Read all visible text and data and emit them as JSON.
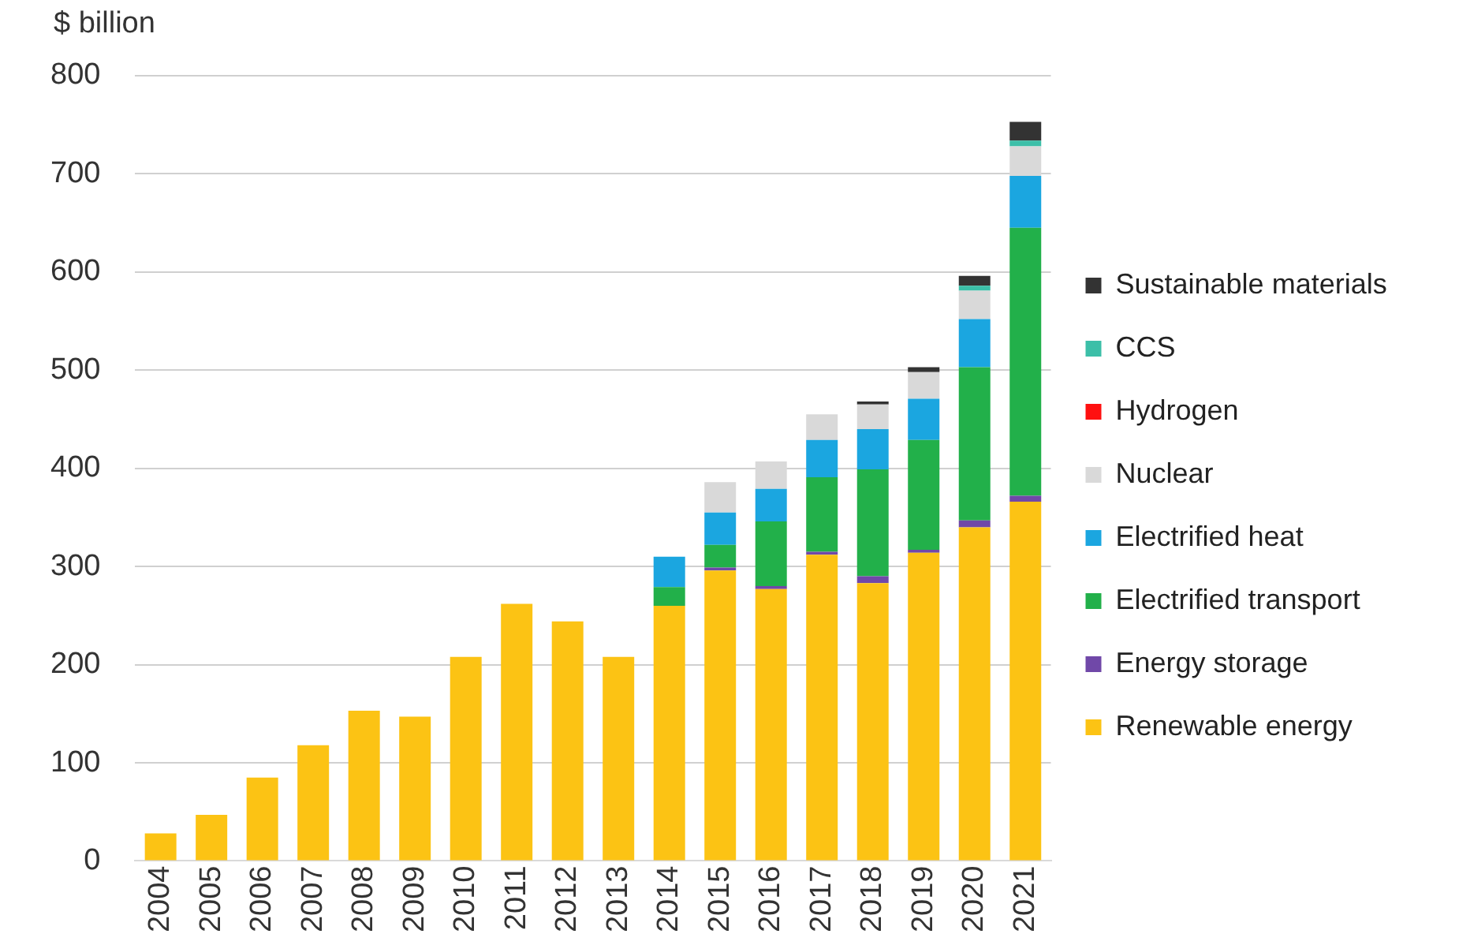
{
  "chart_data": {
    "type": "bar",
    "stacked": true,
    "ylabel": "$ billion",
    "categories": [
      "2004",
      "2005",
      "2006",
      "2007",
      "2008",
      "2009",
      "2010",
      "2011",
      "2012",
      "2013",
      "2014",
      "2015",
      "2016",
      "2017",
      "2018",
      "2019",
      "2020",
      "2021"
    ],
    "series": [
      {
        "name": "Renewable energy",
        "color": "#fcc314",
        "values": [
          28,
          47,
          85,
          118,
          153,
          147,
          208,
          262,
          244,
          208,
          260,
          296,
          277,
          312,
          283,
          314,
          340,
          366
        ]
      },
      {
        "name": "Energy storage",
        "color": "#7048a8",
        "values": [
          0,
          0,
          0,
          0,
          0,
          0,
          0,
          0,
          0,
          0,
          0,
          3,
          3,
          3,
          7,
          3,
          7,
          6
        ]
      },
      {
        "name": "Electrified transport",
        "color": "#22b04a",
        "values": [
          0,
          0,
          0,
          0,
          0,
          0,
          0,
          0,
          0,
          0,
          19,
          23,
          66,
          76,
          109,
          112,
          156,
          273
        ]
      },
      {
        "name": "Electrified heat",
        "color": "#1ba6e0",
        "values": [
          0,
          0,
          0,
          0,
          0,
          0,
          0,
          0,
          0,
          0,
          31,
          33,
          33,
          38,
          41,
          42,
          49,
          53
        ]
      },
      {
        "name": "Nuclear",
        "color": "#d9d9d9",
        "values": [
          0,
          0,
          0,
          0,
          0,
          0,
          0,
          0,
          0,
          0,
          0,
          31,
          28,
          26,
          25,
          27,
          29,
          30
        ]
      },
      {
        "name": "Hydrogen",
        "color": "#ff1010",
        "values": [
          0,
          0,
          0,
          0,
          0,
          0,
          0,
          0,
          0,
          0,
          0,
          0,
          0,
          0,
          0,
          0,
          0,
          0
        ]
      },
      {
        "name": "CCS",
        "color": "#3cbfa8",
        "values": [
          0,
          0,
          0,
          0,
          0,
          0,
          0,
          0,
          0,
          0,
          0,
          0,
          0,
          0,
          0,
          0,
          5,
          6
        ]
      },
      {
        "name": "Sustainable materials",
        "color": "#333333",
        "values": [
          0,
          0,
          0,
          0,
          0,
          0,
          0,
          0,
          0,
          0,
          0,
          0,
          0,
          0,
          3,
          5,
          10,
          19
        ]
      }
    ],
    "ylim": [
      0,
      800
    ],
    "yticks": [
      0,
      100,
      200,
      300,
      400,
      500,
      600,
      700,
      800
    ],
    "grid": "y",
    "legend": "right"
  }
}
